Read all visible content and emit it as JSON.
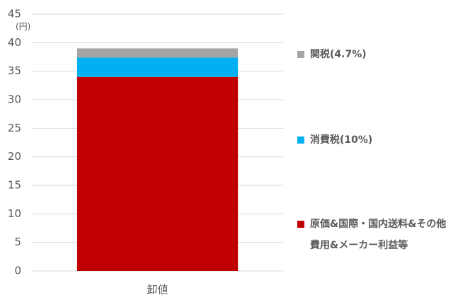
{
  "chart_data": {
    "type": "stacked-bar",
    "y_axis_label": "(円)",
    "categories": [
      "卸値"
    ],
    "series": [
      {
        "name": "原価&国際・国内送料&その他費用&メーカー利益等",
        "color": "#c00000",
        "values": [
          34
        ]
      },
      {
        "name": "消費税(10%)",
        "color": "#00b0f0",
        "values": [
          3.4
        ]
      },
      {
        "name": "関税(4.7%)",
        "color": "#a5a5a5",
        "values": [
          1.6
        ]
      }
    ],
    "ylim": [
      0,
      45
    ],
    "yticks": [
      0,
      5,
      10,
      15,
      20,
      25,
      30,
      35,
      40,
      45
    ],
    "grid": true
  }
}
